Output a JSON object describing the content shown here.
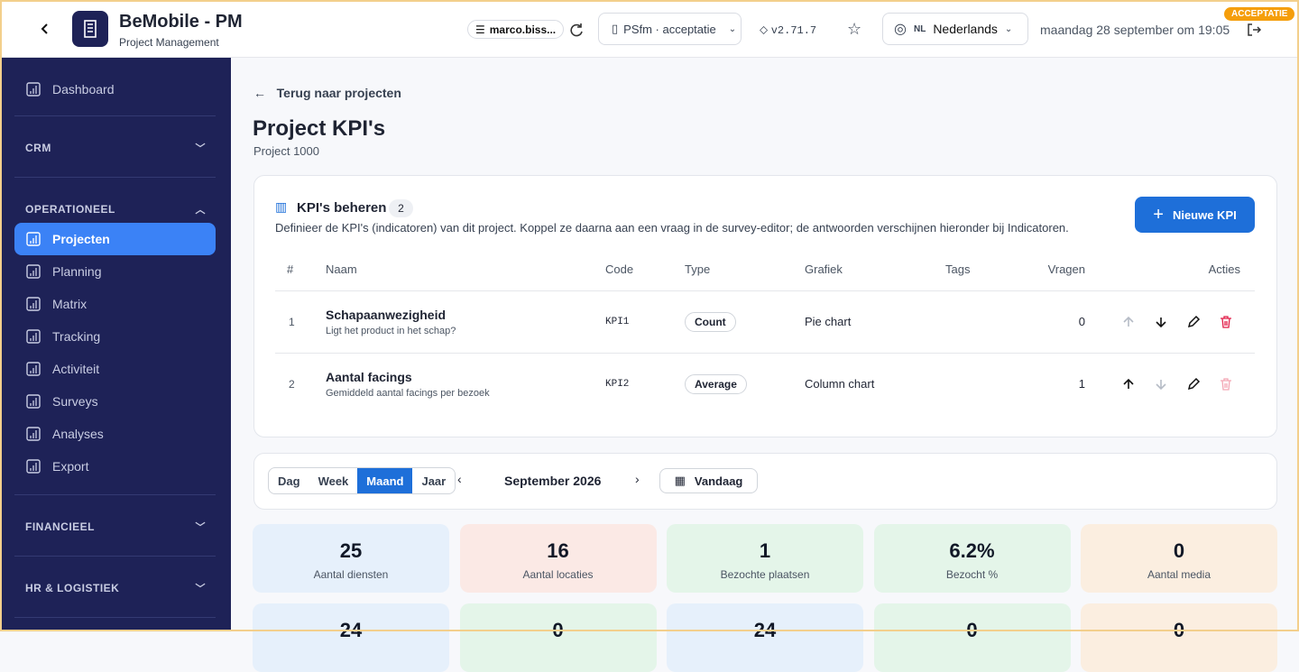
{
  "header": {
    "app_title": "BeMobile - PM",
    "app_subtitle": "Project Management",
    "user": "marco.biss...",
    "environment": "PSfm · acceptatie",
    "version": "v2.71.7",
    "language_code": "NL",
    "language": "Nederlands",
    "datetime": "maandag 28 september om 19:05",
    "env_badge": "ACCEPTATIE"
  },
  "sidebar": {
    "top_item": "Dashboard",
    "sections": [
      {
        "title": "CRM",
        "expanded": false
      },
      {
        "title": "OPERATIONEEL",
        "expanded": true,
        "active": 0,
        "items": [
          "Projecten",
          "Planning",
          "Matrix",
          "Tracking",
          "Activiteit",
          "Surveys",
          "Analyses",
          "Export"
        ]
      },
      {
        "title": "FINANCIEEL",
        "expanded": false
      },
      {
        "title": "HR & LOGISTIEK",
        "expanded": false
      }
    ]
  },
  "page": {
    "back_link": "Terug naar projecten",
    "title": "Project KPI's",
    "subtitle": "Project 1000"
  },
  "kpi_card": {
    "title": "KPI's beheren",
    "count": 2,
    "description": "Definieer de KPI's (indicatoren) van dit project. Koppel ze daarna aan een vraag in de survey-editor; de antwoorden verschijnen hieronder bij Indicatoren.",
    "button": "Nieuwe KPI",
    "columns": [
      "#",
      "Naam",
      "Code",
      "Type",
      "Grafiek",
      "Tags",
      "Vragen",
      "Acties"
    ],
    "rows": [
      {
        "index": 1,
        "name": "Schapaanwezigheid",
        "description": "Ligt het product in het schap?",
        "code": "KPI1",
        "type": "Count",
        "chart": "Pie chart",
        "questions": 0,
        "can_move_up": false,
        "can_move_down": true,
        "can_delete": true
      },
      {
        "index": 2,
        "name": "Aantal facings",
        "description": "Gemiddeld aantal facings per bezoek",
        "code": "KPI2",
        "type": "Average",
        "chart": "Column chart",
        "questions": 1,
        "can_move_up": true,
        "can_move_down": false,
        "can_delete": false
      }
    ]
  },
  "period": {
    "views": [
      "Dag",
      "Week",
      "Maand",
      "Jaar"
    ],
    "active_view": 2,
    "label": "September 2026",
    "today": "Vandaag"
  },
  "stats": [
    {
      "value": 25,
      "label": "Aantal diensten",
      "tone": "blue"
    },
    {
      "value": 16,
      "label": "Aantal locaties",
      "tone": "red"
    },
    {
      "value": 1,
      "label": "Bezochte plaatsen",
      "tone": "green"
    },
    {
      "value": "6.2%",
      "label": "Bezocht %",
      "tone": "green"
    },
    {
      "value": 0,
      "label": "Aantal media",
      "tone": "orange"
    },
    {
      "value": 24,
      "tone": "blue"
    },
    {
      "value": 0,
      "tone": "green"
    },
    {
      "value": 24,
      "tone": "blue"
    },
    {
      "value": 0,
      "tone": "green"
    },
    {
      "value": 0,
      "tone": "orange"
    }
  ]
}
